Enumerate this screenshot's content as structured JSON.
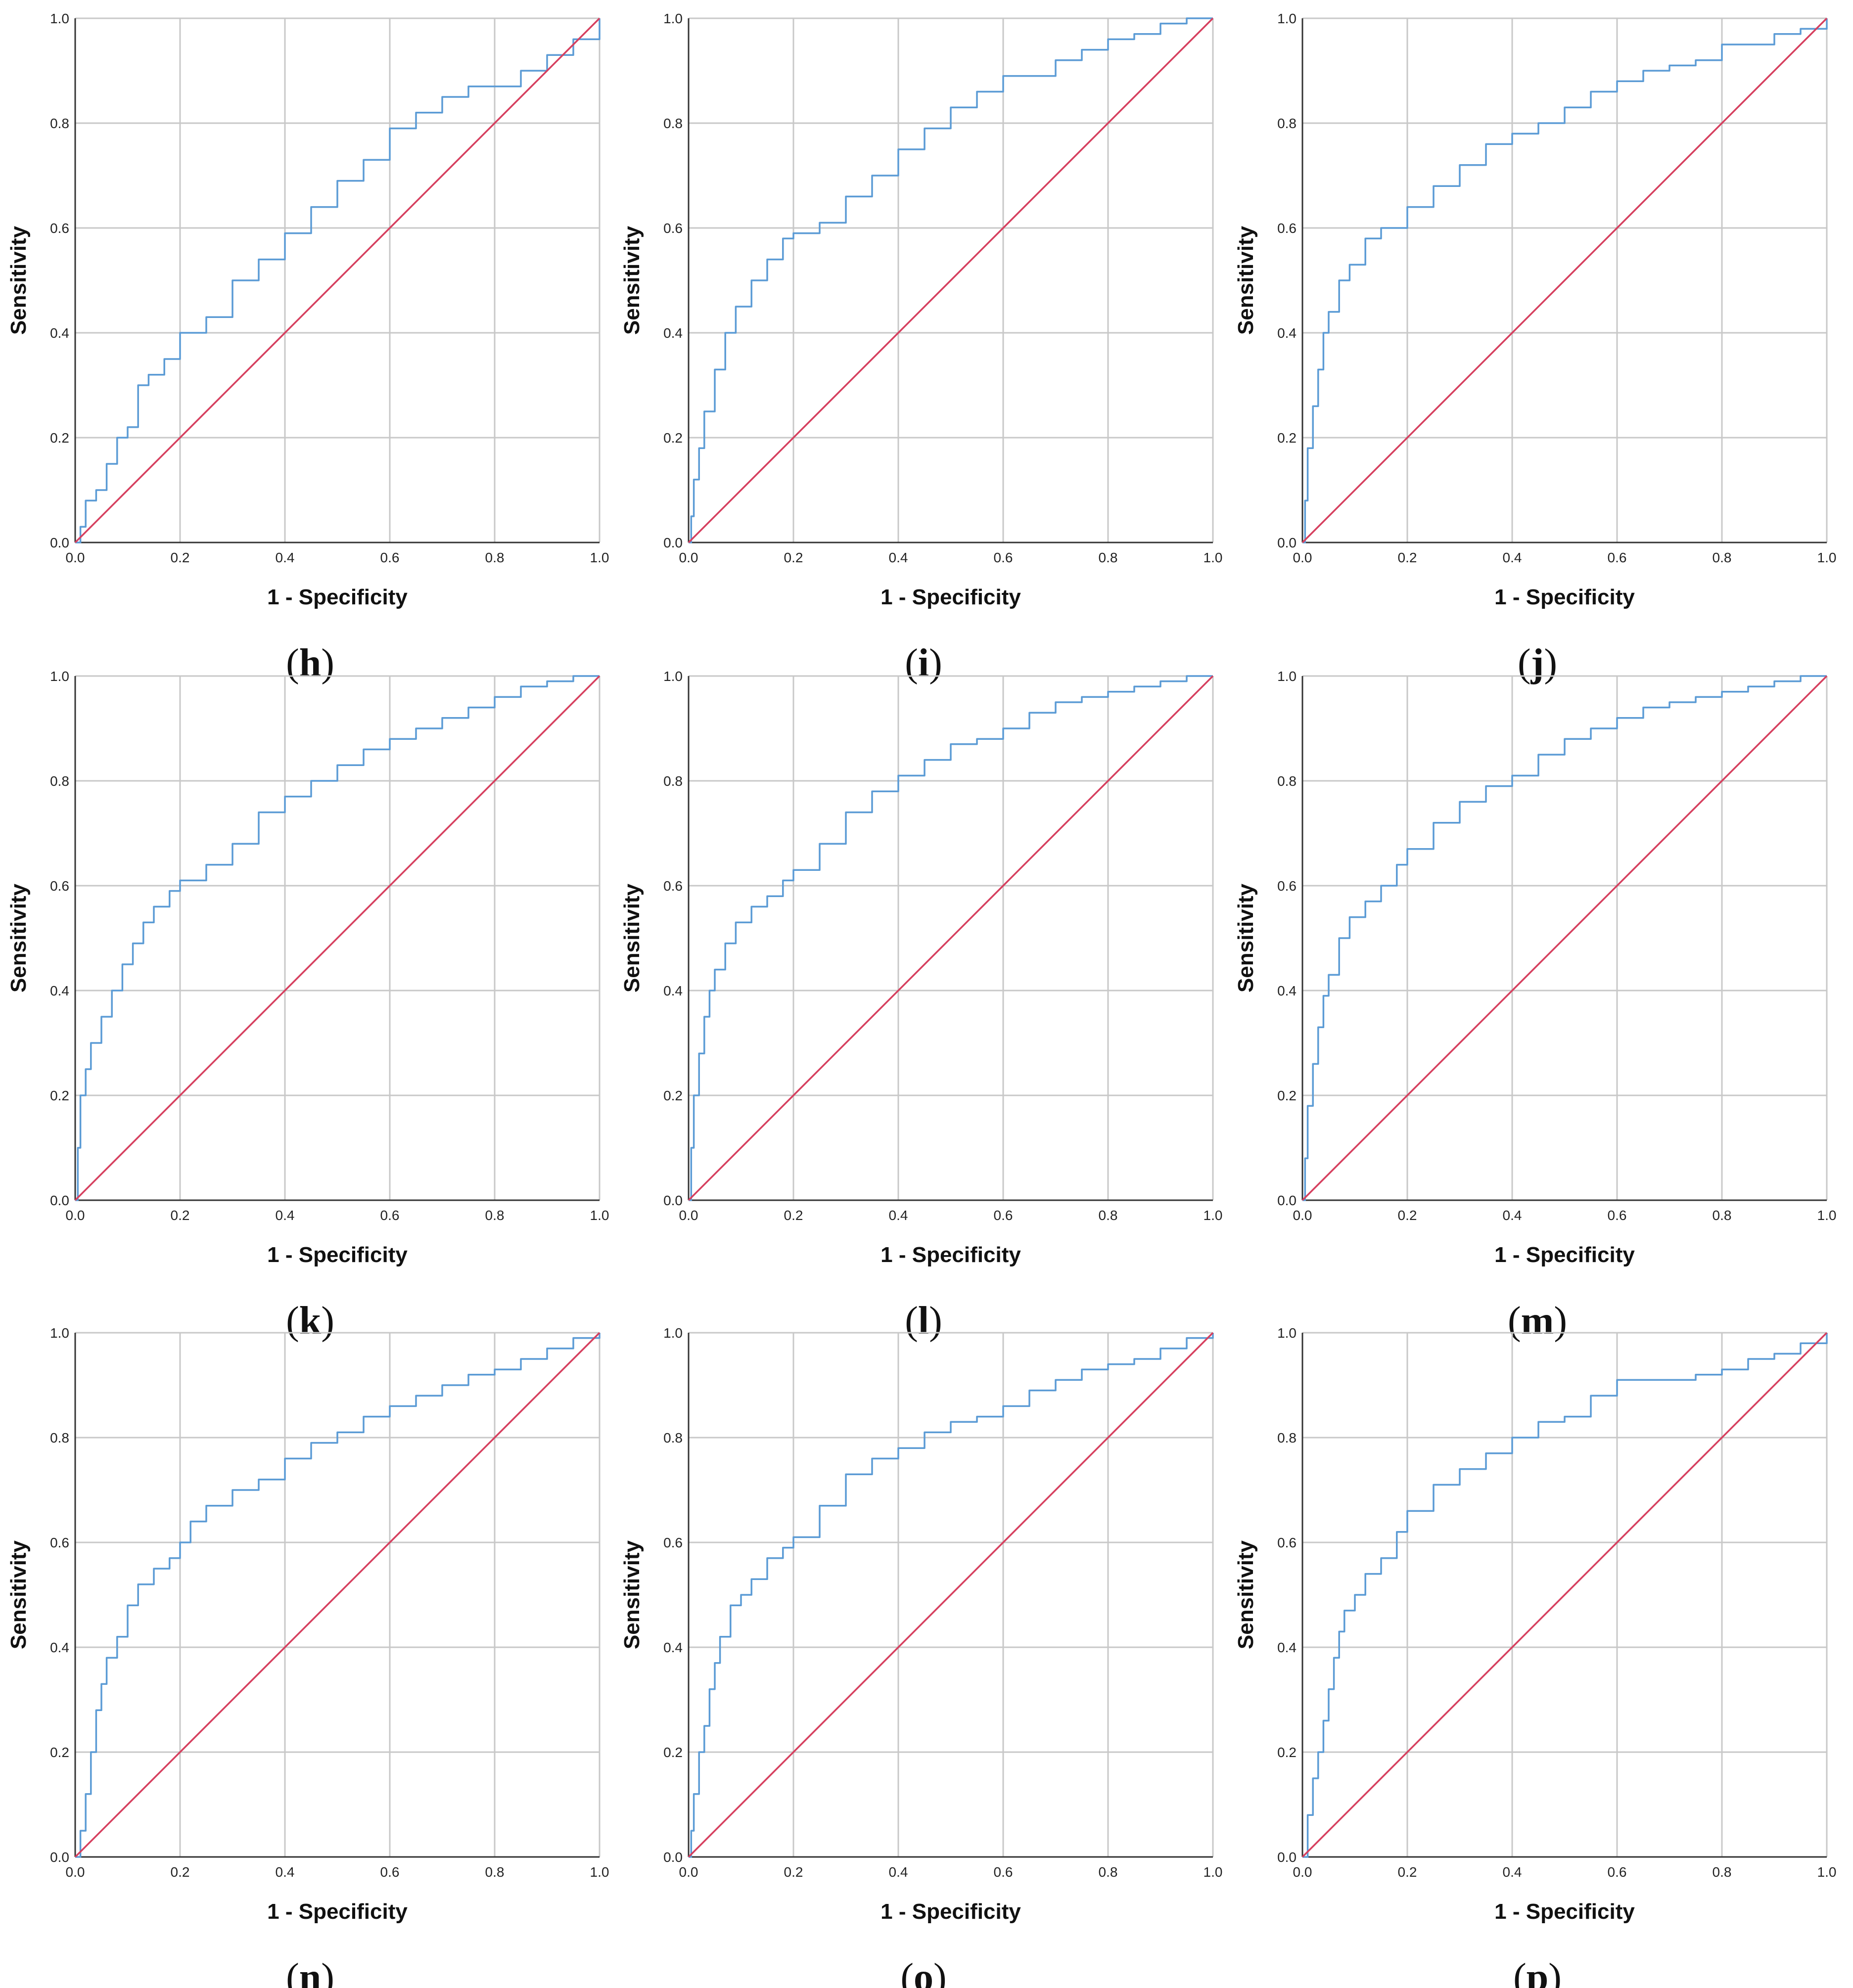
{
  "figure": {
    "colors": {
      "roc": "#5b9bd5",
      "reference": "#d6405f",
      "grid": "#c8c8c8",
      "axis": "#333333"
    }
  },
  "chart_data": [
    {
      "type": "line",
      "panel": "h",
      "xlabel": "1 - Specificity",
      "ylabel": "Sensitivity",
      "xlim": [
        0,
        1
      ],
      "ylim": [
        0,
        1
      ],
      "xticks": [
        "0.0",
        "0.2",
        "0.4",
        "0.6",
        "0.8",
        "1.0"
      ],
      "yticks": [
        "0.0",
        "0.2",
        "0.4",
        "0.6",
        "0.8",
        "1.0"
      ],
      "grid": true,
      "series": [
        {
          "x": [
            0,
            0.01,
            0.02,
            0.04,
            0.06,
            0.08,
            0.1,
            0.12,
            0.14,
            0.17,
            0.2,
            0.25,
            0.3,
            0.35,
            0.4,
            0.45,
            0.5,
            0.55,
            0.6,
            0.65,
            0.7,
            0.75,
            0.8,
            0.85,
            0.9,
            0.95,
            1.0
          ],
          "y": [
            0,
            0.03,
            0.08,
            0.1,
            0.15,
            0.2,
            0.22,
            0.3,
            0.32,
            0.35,
            0.4,
            0.43,
            0.5,
            0.54,
            0.59,
            0.64,
            0.69,
            0.73,
            0.79,
            0.82,
            0.85,
            0.87,
            0.87,
            0.9,
            0.93,
            0.96,
            1.0
          ]
        },
        {
          "x": [
            0,
            1
          ],
          "y": [
            0,
            1
          ]
        }
      ]
    },
    {
      "type": "line",
      "panel": "i",
      "xlabel": "1 - Specificity",
      "ylabel": "Sensitivity",
      "xlim": [
        0,
        1
      ],
      "ylim": [
        0,
        1
      ],
      "xticks": [
        "0.0",
        "0.2",
        "0.4",
        "0.6",
        "0.8",
        "1.0"
      ],
      "yticks": [
        "0.0",
        "0.2",
        "0.4",
        "0.6",
        "0.8",
        "1.0"
      ],
      "grid": true,
      "series": [
        {
          "x": [
            0,
            0.005,
            0.01,
            0.02,
            0.03,
            0.05,
            0.07,
            0.09,
            0.12,
            0.15,
            0.18,
            0.2,
            0.25,
            0.3,
            0.35,
            0.4,
            0.45,
            0.5,
            0.55,
            0.6,
            0.65,
            0.7,
            0.75,
            0.8,
            0.85,
            0.9,
            0.95,
            1.0
          ],
          "y": [
            0,
            0.05,
            0.12,
            0.18,
            0.25,
            0.33,
            0.4,
            0.45,
            0.5,
            0.54,
            0.58,
            0.59,
            0.61,
            0.66,
            0.7,
            0.75,
            0.79,
            0.83,
            0.86,
            0.89,
            0.89,
            0.92,
            0.94,
            0.96,
            0.97,
            0.99,
            1.0,
            1.0
          ]
        },
        {
          "x": [
            0,
            1
          ],
          "y": [
            0,
            1
          ]
        }
      ]
    },
    {
      "type": "line",
      "panel": "j",
      "xlabel": "1 - Specificity",
      "ylabel": "Sensitivity",
      "xlim": [
        0,
        1
      ],
      "ylim": [
        0,
        1
      ],
      "xticks": [
        "0.0",
        "0.2",
        "0.4",
        "0.6",
        "0.8",
        "1.0"
      ],
      "yticks": [
        "0.0",
        "0.2",
        "0.4",
        "0.6",
        "0.8",
        "1.0"
      ],
      "grid": true,
      "series": [
        {
          "x": [
            0,
            0.005,
            0.01,
            0.02,
            0.03,
            0.04,
            0.05,
            0.07,
            0.09,
            0.12,
            0.15,
            0.2,
            0.25,
            0.3,
            0.35,
            0.4,
            0.45,
            0.5,
            0.55,
            0.6,
            0.65,
            0.7,
            0.75,
            0.8,
            0.85,
            0.9,
            0.95,
            1.0
          ],
          "y": [
            0,
            0.08,
            0.18,
            0.26,
            0.33,
            0.4,
            0.44,
            0.5,
            0.53,
            0.58,
            0.6,
            0.64,
            0.68,
            0.72,
            0.76,
            0.78,
            0.8,
            0.83,
            0.86,
            0.88,
            0.9,
            0.91,
            0.92,
            0.95,
            0.95,
            0.97,
            0.98,
            1.0
          ]
        },
        {
          "x": [
            0,
            1
          ],
          "y": [
            0,
            1
          ]
        }
      ]
    },
    {
      "type": "line",
      "panel": "k",
      "xlabel": "1 - Specificity",
      "ylabel": "Sensitivity",
      "xlim": [
        0,
        1
      ],
      "ylim": [
        0,
        1
      ],
      "xticks": [
        "0.0",
        "0.2",
        "0.4",
        "0.6",
        "0.8",
        "1.0"
      ],
      "yticks": [
        "0.0",
        "0.2",
        "0.4",
        "0.6",
        "0.8",
        "1.0"
      ],
      "grid": true,
      "series": [
        {
          "x": [
            0,
            0.005,
            0.01,
            0.02,
            0.03,
            0.05,
            0.07,
            0.09,
            0.11,
            0.13,
            0.15,
            0.18,
            0.2,
            0.25,
            0.3,
            0.35,
            0.4,
            0.45,
            0.5,
            0.55,
            0.6,
            0.65,
            0.7,
            0.75,
            0.8,
            0.85,
            0.9,
            0.95,
            1.0
          ],
          "y": [
            0,
            0.1,
            0.2,
            0.25,
            0.3,
            0.35,
            0.4,
            0.45,
            0.49,
            0.53,
            0.56,
            0.59,
            0.61,
            0.64,
            0.68,
            0.74,
            0.77,
            0.8,
            0.83,
            0.86,
            0.88,
            0.9,
            0.92,
            0.94,
            0.96,
            0.98,
            0.99,
            1.0,
            1.0
          ]
        },
        {
          "x": [
            0,
            1
          ],
          "y": [
            0,
            1
          ]
        }
      ]
    },
    {
      "type": "line",
      "panel": "l",
      "xlabel": "1 - Specificity",
      "ylabel": "Sensitivity",
      "xlim": [
        0,
        1
      ],
      "ylim": [
        0,
        1
      ],
      "xticks": [
        "0.0",
        "0.2",
        "0.4",
        "0.6",
        "0.8",
        "1.0"
      ],
      "yticks": [
        "0.0",
        "0.2",
        "0.4",
        "0.6",
        "0.8",
        "1.0"
      ],
      "grid": true,
      "series": [
        {
          "x": [
            0,
            0.005,
            0.01,
            0.02,
            0.03,
            0.04,
            0.05,
            0.07,
            0.09,
            0.12,
            0.15,
            0.18,
            0.2,
            0.25,
            0.3,
            0.35,
            0.4,
            0.45,
            0.5,
            0.55,
            0.6,
            0.65,
            0.7,
            0.75,
            0.8,
            0.85,
            0.9,
            0.95,
            1.0
          ],
          "y": [
            0,
            0.1,
            0.2,
            0.28,
            0.35,
            0.4,
            0.44,
            0.49,
            0.53,
            0.56,
            0.58,
            0.61,
            0.63,
            0.68,
            0.74,
            0.78,
            0.81,
            0.84,
            0.87,
            0.88,
            0.9,
            0.93,
            0.95,
            0.96,
            0.97,
            0.98,
            0.99,
            1.0,
            1.0
          ]
        },
        {
          "x": [
            0,
            1
          ],
          "y": [
            0,
            1
          ]
        }
      ]
    },
    {
      "type": "line",
      "panel": "m",
      "xlabel": "1 - Specificity",
      "ylabel": "Sensitivity",
      "xlim": [
        0,
        1
      ],
      "ylim": [
        0,
        1
      ],
      "xticks": [
        "0.0",
        "0.2",
        "0.4",
        "0.6",
        "0.8",
        "1.0"
      ],
      "yticks": [
        "0.0",
        "0.2",
        "0.4",
        "0.6",
        "0.8",
        "1.0"
      ],
      "grid": true,
      "series": [
        {
          "x": [
            0,
            0.005,
            0.01,
            0.02,
            0.03,
            0.04,
            0.05,
            0.07,
            0.09,
            0.12,
            0.15,
            0.18,
            0.2,
            0.25,
            0.3,
            0.35,
            0.4,
            0.45,
            0.5,
            0.55,
            0.6,
            0.65,
            0.7,
            0.75,
            0.8,
            0.85,
            0.9,
            0.95,
            1.0
          ],
          "y": [
            0,
            0.08,
            0.18,
            0.26,
            0.33,
            0.39,
            0.43,
            0.5,
            0.54,
            0.57,
            0.6,
            0.64,
            0.67,
            0.72,
            0.76,
            0.79,
            0.81,
            0.85,
            0.88,
            0.9,
            0.92,
            0.94,
            0.95,
            0.96,
            0.97,
            0.98,
            0.99,
            1.0,
            1.0
          ]
        },
        {
          "x": [
            0,
            1
          ],
          "y": [
            0,
            1
          ]
        }
      ]
    },
    {
      "type": "line",
      "panel": "n",
      "xlabel": "1 - Specificity",
      "ylabel": "Sensitivity",
      "xlim": [
        0,
        1
      ],
      "ylim": [
        0,
        1
      ],
      "xticks": [
        "0.0",
        "0.2",
        "0.4",
        "0.6",
        "0.8",
        "1.0"
      ],
      "yticks": [
        "0.0",
        "0.2",
        "0.4",
        "0.6",
        "0.8",
        "1.0"
      ],
      "grid": true,
      "series": [
        {
          "x": [
            0,
            0.01,
            0.02,
            0.03,
            0.04,
            0.05,
            0.06,
            0.08,
            0.1,
            0.12,
            0.15,
            0.18,
            0.2,
            0.22,
            0.25,
            0.3,
            0.35,
            0.4,
            0.45,
            0.5,
            0.55,
            0.6,
            0.65,
            0.7,
            0.75,
            0.8,
            0.85,
            0.9,
            0.95,
            1.0
          ],
          "y": [
            0,
            0.05,
            0.12,
            0.2,
            0.28,
            0.33,
            0.38,
            0.42,
            0.48,
            0.52,
            0.55,
            0.57,
            0.6,
            0.64,
            0.67,
            0.7,
            0.72,
            0.76,
            0.79,
            0.81,
            0.84,
            0.86,
            0.88,
            0.9,
            0.92,
            0.93,
            0.95,
            0.97,
            0.99,
            1.0
          ]
        },
        {
          "x": [
            0,
            1
          ],
          "y": [
            0,
            1
          ]
        }
      ]
    },
    {
      "type": "line",
      "panel": "o",
      "xlabel": "1 - Specificity",
      "ylabel": "Sensitivity",
      "xlim": [
        0,
        1
      ],
      "ylim": [
        0,
        1
      ],
      "xticks": [
        "0.0",
        "0.2",
        "0.4",
        "0.6",
        "0.8",
        "1.0"
      ],
      "yticks": [
        "0.0",
        "0.2",
        "0.4",
        "0.6",
        "0.8",
        "1.0"
      ],
      "grid": true,
      "series": [
        {
          "x": [
            0,
            0.005,
            0.01,
            0.02,
            0.03,
            0.04,
            0.05,
            0.06,
            0.08,
            0.1,
            0.12,
            0.15,
            0.18,
            0.2,
            0.25,
            0.3,
            0.35,
            0.4,
            0.45,
            0.5,
            0.55,
            0.6,
            0.65,
            0.7,
            0.75,
            0.8,
            0.85,
            0.9,
            0.95,
            1.0
          ],
          "y": [
            0,
            0.05,
            0.12,
            0.2,
            0.25,
            0.32,
            0.37,
            0.42,
            0.48,
            0.5,
            0.53,
            0.57,
            0.59,
            0.61,
            0.67,
            0.73,
            0.76,
            0.78,
            0.81,
            0.83,
            0.84,
            0.86,
            0.89,
            0.91,
            0.93,
            0.94,
            0.95,
            0.97,
            0.99,
            1.0
          ]
        },
        {
          "x": [
            0,
            1
          ],
          "y": [
            0,
            1
          ]
        }
      ]
    },
    {
      "type": "line",
      "panel": "p",
      "xlabel": "1 - Specificity",
      "ylabel": "Sensitivity",
      "xlim": [
        0,
        1
      ],
      "ylim": [
        0,
        1
      ],
      "xticks": [
        "0.0",
        "0.2",
        "0.4",
        "0.6",
        "0.8",
        "1.0"
      ],
      "yticks": [
        "0.0",
        "0.2",
        "0.4",
        "0.6",
        "0.8",
        "1.0"
      ],
      "grid": true,
      "series": [
        {
          "x": [
            0,
            0.01,
            0.02,
            0.03,
            0.04,
            0.05,
            0.06,
            0.07,
            0.08,
            0.1,
            0.12,
            0.15,
            0.18,
            0.2,
            0.25,
            0.3,
            0.35,
            0.4,
            0.45,
            0.5,
            0.55,
            0.6,
            0.65,
            0.7,
            0.75,
            0.8,
            0.85,
            0.9,
            0.95,
            1.0
          ],
          "y": [
            0,
            0.08,
            0.15,
            0.2,
            0.26,
            0.32,
            0.38,
            0.43,
            0.47,
            0.5,
            0.54,
            0.57,
            0.62,
            0.66,
            0.71,
            0.74,
            0.77,
            0.8,
            0.83,
            0.84,
            0.88,
            0.91,
            0.91,
            0.91,
            0.92,
            0.93,
            0.95,
            0.96,
            0.98,
            1.0
          ]
        },
        {
          "x": [
            0,
            1
          ],
          "y": [
            0,
            1
          ]
        }
      ]
    }
  ],
  "panels": [
    {
      "label": "h"
    },
    {
      "label": "i"
    },
    {
      "label": "j"
    },
    {
      "label": "k"
    },
    {
      "label": "l"
    },
    {
      "label": "m"
    },
    {
      "label": "n"
    },
    {
      "label": "o"
    },
    {
      "label": "p"
    }
  ]
}
